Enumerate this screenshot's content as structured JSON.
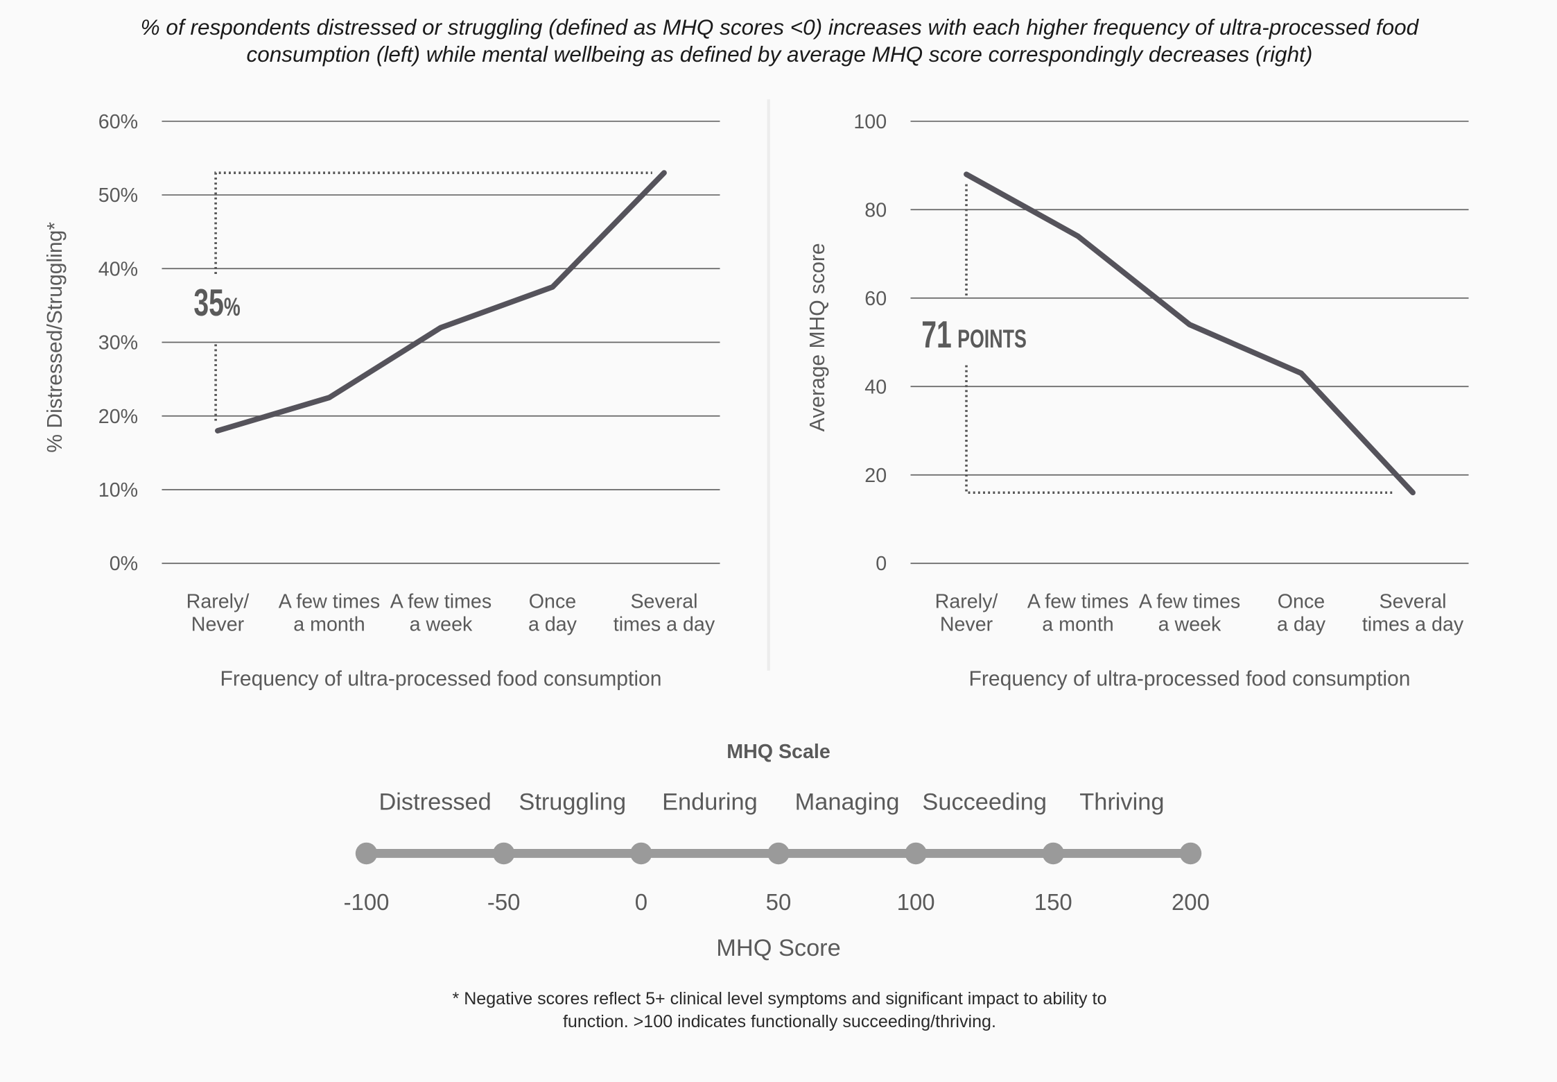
{
  "title": "% of respondents distressed or struggling (defined as MHQ scores <0) increases with each higher frequency of ultra-processed food consumption (left) while mental wellbeing as defined by average MHQ score correspondingly decreases (right)",
  "footnote": "* Negative scores reflect 5+ clinical level symptoms and significant impact to ability to function. >100 indicates functionally succeeding/thriving.",
  "chart_data": [
    {
      "type": "line",
      "xlabel": "Frequency of ultra-processed food consumption",
      "ylabel": "% Distressed/Struggling*",
      "categories": [
        "Rarely/\nNever",
        "A few times\na month",
        "A few times\na week",
        "Once\na day",
        "Several\ntimes a day"
      ],
      "values": [
        18,
        22.5,
        32,
        37.5,
        53
      ],
      "color": "#55535b",
      "ylim": [
        0,
        60
      ],
      "yticks": [
        {
          "value": 0,
          "label": "0%"
        },
        {
          "value": 10,
          "label": "10%"
        },
        {
          "value": 20,
          "label": "20%"
        },
        {
          "value": 30,
          "label": "30%"
        },
        {
          "value": 40,
          "label": "40%"
        },
        {
          "value": 50,
          "label": "50%"
        },
        {
          "value": 60,
          "label": "60%"
        }
      ],
      "grid": true,
      "annotation": {
        "number": "35",
        "suffix": "%"
      }
    },
    {
      "type": "line",
      "xlabel": "Frequency of ultra-processed food consumption",
      "ylabel": "Average MHQ score",
      "categories": [
        "Rarely/\nNever",
        "A few times\na month",
        "A few times\na week",
        "Once\na day",
        "Several\ntimes a day"
      ],
      "values": [
        88,
        74,
        54,
        43,
        16
      ],
      "color": "#55535b",
      "ylim": [
        0,
        100
      ],
      "yticks": [
        0,
        20,
        40,
        60,
        80,
        100
      ],
      "grid": true,
      "annotation": {
        "number": "71",
        "suffix": "POINTS"
      }
    },
    {
      "type": "scale",
      "title": "MHQ Scale",
      "xlabel": "MHQ Score",
      "categories": [
        "Distressed",
        "Struggling",
        "Enduring",
        "Managing",
        "Succeeding",
        "Thriving"
      ],
      "xlim": [
        -100,
        200
      ],
      "xticks": [
        -100,
        -50,
        0,
        50,
        100,
        150,
        200
      ],
      "color": "#9a9a9a"
    }
  ]
}
